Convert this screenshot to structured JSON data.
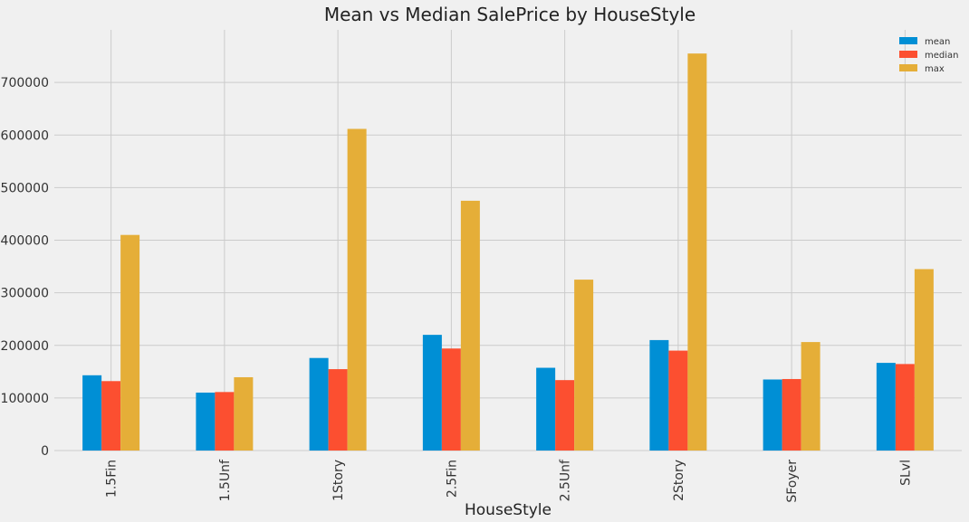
{
  "chart_data": {
    "type": "bar",
    "title": "Mean vs Median SalePrice by HouseStyle",
    "xlabel": "HouseStyle",
    "ylabel": "",
    "categories": [
      "1.5Fin",
      "1.5Unf",
      "1Story",
      "2.5Fin",
      "2.5Unf",
      "2Story",
      "SFoyer",
      "SLvl"
    ],
    "ylim": [
      0,
      800000
    ],
    "yticks": [
      0,
      100000,
      200000,
      300000,
      400000,
      500000,
      600000,
      700000
    ],
    "grid": true,
    "legend_position": "top-right",
    "series": [
      {
        "name": "mean",
        "color": "#008fd5",
        "values": [
          143117,
          110150,
          175985,
          220000,
          157355,
          210052,
          135074,
          166703
        ]
      },
      {
        "name": "median",
        "color": "#fc4f30",
        "values": [
          132000,
          111250,
          154750,
          194000,
          133900,
          190000,
          135960,
          164500
        ]
      },
      {
        "name": "max",
        "color": "#e5ae38",
        "values": [
          410000,
          139400,
          611657,
          475000,
          325000,
          755000,
          206300,
          345000
        ]
      }
    ]
  }
}
